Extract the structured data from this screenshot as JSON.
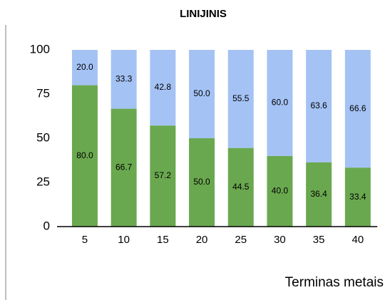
{
  "chart_data": {
    "type": "stacked_bar",
    "title": "LINIJINIS",
    "x_label": "Terminas metais",
    "categories": [
      "5",
      "10",
      "15",
      "20",
      "25",
      "30",
      "35",
      "40"
    ],
    "series": [
      {
        "color": "#6aa84f",
        "values": [
          80,
          66.7,
          57.2,
          50,
          44.5,
          40,
          36.4,
          33.4
        ],
        "value_labels": [
          "80.0",
          "66.7",
          "57.2",
          "50.0",
          "44.5",
          "40.0",
          "36.4",
          "33.4"
        ]
      },
      {
        "color": "#a4c2f4",
        "values": [
          20,
          33.3,
          42.8,
          50,
          55.5,
          60,
          63.6,
          66.6
        ],
        "value_labels": [
          "20.0",
          "33.3",
          "42.8",
          "50.0",
          "55.5",
          "60.0",
          "63.6",
          "66.6"
        ]
      }
    ],
    "ylim": [
      0,
      100
    ],
    "yticks": [
      0,
      25,
      50,
      75,
      100
    ],
    "grid": false
  }
}
